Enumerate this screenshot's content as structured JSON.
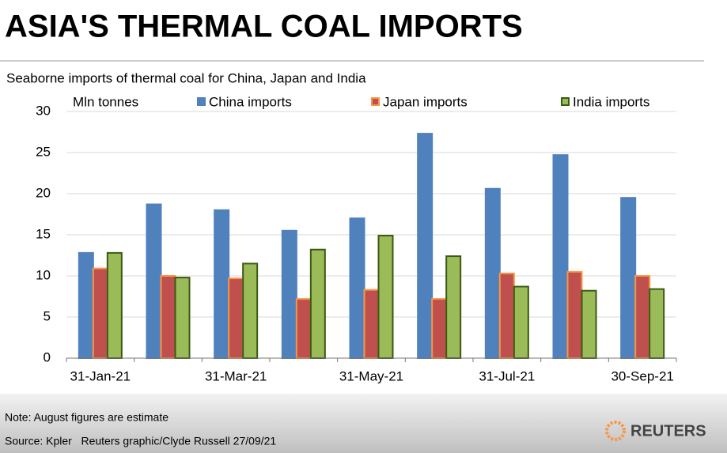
{
  "chart_data": {
    "type": "bar",
    "title": "ASIA'S THERMAL COAL IMPORTS",
    "subtitle": "Seaborne imports of thermal coal for China, Japan and India",
    "ylabel": "Mln tonnes",
    "categories": [
      "31-Jan-21",
      null,
      "31-Mar-21",
      null,
      "31-May-21",
      null,
      "31-Jul-21",
      null,
      "30-Sep-21"
    ],
    "series": [
      {
        "name": "China imports",
        "color": "#4f81bd",
        "edgecolor": "#4f81bd",
        "values": [
          12.8,
          18.7,
          18.0,
          15.5,
          17.0,
          27.3,
          20.6,
          24.7,
          19.5
        ]
      },
      {
        "name": "Japan imports",
        "color": "#c0504d",
        "edgecolor": "#f79646",
        "values": [
          10.9,
          10.0,
          9.7,
          7.2,
          8.3,
          7.2,
          10.3,
          10.5,
          10.0
        ]
      },
      {
        "name": "India imports",
        "color": "#9bbb59",
        "edgecolor": "#3a5a14",
        "values": [
          12.8,
          9.8,
          11.5,
          13.2,
          14.9,
          12.4,
          8.7,
          8.2,
          8.4
        ]
      }
    ],
    "ylim": [
      0,
      30
    ],
    "yticks": [
      0,
      5,
      10,
      15,
      20,
      25,
      30
    ],
    "grid": true,
    "legend": "top"
  },
  "footer": {
    "note": "Note: August figures are estimate",
    "source": "Source: Kpler   Reuters graphic/Clyde Russell 27/09/21",
    "logo": "REUTERS"
  }
}
